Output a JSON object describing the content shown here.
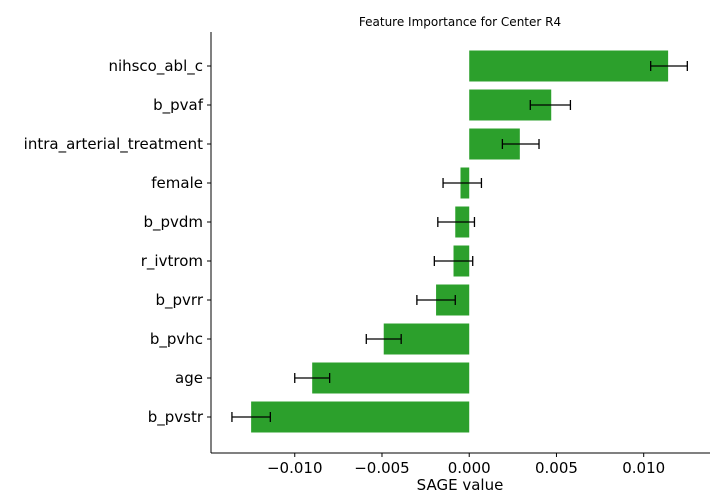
{
  "chart_data": {
    "type": "bar",
    "orientation": "horizontal",
    "title": "Feature Importance for Center R4",
    "xlabel": "SAGE value",
    "ylabel": "",
    "categories": [
      "nihsco_abl_c",
      "b_pvaf",
      "intra_arterial_treatment",
      "female",
      "b_pvdm",
      "r_ivtrom",
      "b_pvrr",
      "b_pvhc",
      "age",
      "b_pvstr"
    ],
    "values": [
      0.0114,
      0.0047,
      0.0029,
      -0.0005,
      -0.0008,
      -0.0009,
      -0.0019,
      -0.0049,
      -0.009,
      -0.0125
    ],
    "error_lower": [
      0.0104,
      0.0035,
      0.0019,
      -0.0015,
      -0.0018,
      -0.002,
      -0.003,
      -0.0059,
      -0.01,
      -0.0136
    ],
    "error_upper": [
      0.0125,
      0.0058,
      0.004,
      0.0007,
      0.0003,
      0.0002,
      -0.0008,
      -0.0039,
      -0.008,
      -0.0114
    ],
    "xlim": [
      -0.0148,
      0.0138
    ],
    "xticks": [
      -0.01,
      -0.005,
      0.0,
      0.005,
      0.01
    ],
    "xtick_labels": [
      "−0.010",
      "−0.005",
      "0.000",
      "0.005",
      "0.010"
    ],
    "bar_color": "#2ca02c",
    "errorbar_color": "#000000",
    "grid": false
  }
}
